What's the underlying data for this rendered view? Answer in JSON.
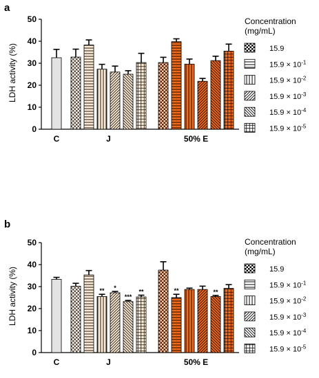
{
  "chart_data": [
    {
      "panel_label": "a",
      "type": "bar",
      "ylabel": "LDH activity (%)",
      "ylim": [
        0,
        50
      ],
      "yticks": [
        "0",
        "10",
        "20",
        "30",
        "40",
        "50"
      ],
      "groups": [
        {
          "label": "C",
          "bars": [
            {
              "value": 32.5,
              "error": 3.8,
              "color": "#e3e3e3",
              "pattern": "solid",
              "sig": ""
            }
          ]
        },
        {
          "label": "J",
          "bars": [
            {
              "value": 32.8,
              "error": 3.6,
              "color": "#fdebd3",
              "pattern": "checker",
              "sig": ""
            },
            {
              "value": 38.3,
              "error": 2.3,
              "color": "#fdebd3",
              "pattern": "hlines",
              "sig": ""
            },
            {
              "value": 27.3,
              "error": 2.2,
              "color": "#fdebd3",
              "pattern": "vlines",
              "sig": ""
            },
            {
              "value": 26.0,
              "error": 2.7,
              "color": "#fdebd3",
              "pattern": "diag-up",
              "sig": ""
            },
            {
              "value": 25.0,
              "error": 1.6,
              "color": "#fdebd3",
              "pattern": "diag-down",
              "sig": ""
            },
            {
              "value": 30.3,
              "error": 4.2,
              "color": "#fdebd3",
              "pattern": "grid",
              "sig": ""
            }
          ]
        },
        {
          "label": "50% E",
          "bars": [
            {
              "value": 30.3,
              "error": 2.4,
              "color": "#f26a1b",
              "pattern": "checker",
              "sig": ""
            },
            {
              "value": 39.8,
              "error": 1.3,
              "color": "#f26a1b",
              "pattern": "hlines",
              "sig": ""
            },
            {
              "value": 29.6,
              "error": 2.3,
              "color": "#f26a1b",
              "pattern": "vlines",
              "sig": ""
            },
            {
              "value": 21.8,
              "error": 1.3,
              "color": "#f26a1b",
              "pattern": "diag-up",
              "sig": ""
            },
            {
              "value": 31.2,
              "error": 2.0,
              "color": "#f26a1b",
              "pattern": "diag-down",
              "sig": ""
            },
            {
              "value": 35.5,
              "error": 3.2,
              "color": "#f26a1b",
              "pattern": "grid",
              "sig": ""
            }
          ]
        }
      ]
    },
    {
      "panel_label": "b",
      "type": "bar",
      "ylabel": "LDH activity (%)",
      "ylim": [
        0,
        50
      ],
      "yticks": [
        "0",
        "10",
        "20",
        "30",
        "40",
        "50"
      ],
      "groups": [
        {
          "label": "C",
          "bars": [
            {
              "value": 33.3,
              "error": 0.9,
              "color": "#e3e3e3",
              "pattern": "solid",
              "sig": ""
            }
          ]
        },
        {
          "label": "J",
          "bars": [
            {
              "value": 30.2,
              "error": 1.3,
              "color": "#fdebd3",
              "pattern": "checker",
              "sig": ""
            },
            {
              "value": 35.3,
              "error": 2.0,
              "color": "#fdebd3",
              "pattern": "hlines",
              "sig": ""
            },
            {
              "value": 25.5,
              "error": 1.0,
              "color": "#fdebd3",
              "pattern": "vlines",
              "sig": "**"
            },
            {
              "value": 27.2,
              "error": 0.6,
              "color": "#fdebd3",
              "pattern": "diag-up",
              "sig": "*"
            },
            {
              "value": 23.2,
              "error": 0.5,
              "color": "#fdebd3",
              "pattern": "diag-down",
              "sig": "***"
            },
            {
              "value": 25.3,
              "error": 0.8,
              "color": "#fdebd3",
              "pattern": "grid",
              "sig": "**"
            }
          ]
        },
        {
          "label": "50% E",
          "bars": [
            {
              "value": 37.5,
              "error": 3.8,
              "color": "#f26a1b",
              "pattern": "checker",
              "sig": ""
            },
            {
              "value": 25.0,
              "error": 1.5,
              "color": "#f26a1b",
              "pattern": "hlines",
              "sig": "**"
            },
            {
              "value": 28.7,
              "error": 0.6,
              "color": "#f26a1b",
              "pattern": "vlines",
              "sig": ""
            },
            {
              "value": 28.7,
              "error": 1.5,
              "color": "#f26a1b",
              "pattern": "diag-up",
              "sig": ""
            },
            {
              "value": 25.5,
              "error": 0.5,
              "color": "#f26a1b",
              "pattern": "diag-down",
              "sig": "**"
            },
            {
              "value": 29.2,
              "error": 1.7,
              "color": "#f26a1b",
              "pattern": "grid",
              "sig": ""
            }
          ]
        }
      ]
    }
  ],
  "legend": {
    "title_line1": "Concentration",
    "title_line2": "(mg/mL)",
    "entries": [
      {
        "pattern": "checker",
        "base": "15.9",
        "exp": ""
      },
      {
        "pattern": "hlines",
        "base": "15.9 × 10",
        "exp": "-1"
      },
      {
        "pattern": "vlines",
        "base": "15.9 × 10",
        "exp": "-2"
      },
      {
        "pattern": "diag-up",
        "base": "15.9 × 10",
        "exp": "-3"
      },
      {
        "pattern": "diag-down",
        "base": "15.9 × 10",
        "exp": "-4"
      },
      {
        "pattern": "grid",
        "base": "15.9 × 10",
        "exp": "-5"
      }
    ]
  }
}
